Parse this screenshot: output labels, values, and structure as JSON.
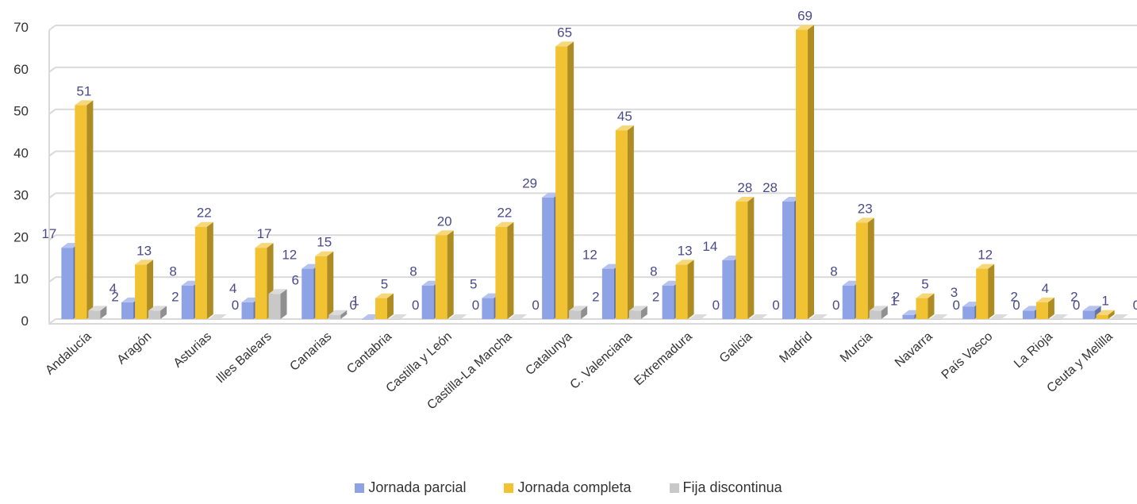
{
  "chart_data": {
    "type": "bar",
    "title": "",
    "xlabel": "",
    "ylabel": "",
    "ylim": [
      0,
      70
    ],
    "yticks": [
      0,
      10,
      20,
      30,
      40,
      50,
      60,
      70
    ],
    "grid": true,
    "legend_position": "bottom",
    "categories": [
      "Andalucía",
      "Aragón",
      "Asturias",
      "Illes Balears",
      "Canarias",
      "Cantabria",
      "Castilla y León",
      "Castilla-La Mancha",
      "Catalunya",
      "C. Valenciana",
      "Extremadura",
      "Galicia",
      "Madrid",
      "Murcia",
      "Navarra",
      "País Vasco",
      "La Rioja",
      "Ceuta  y Melilla"
    ],
    "series": [
      {
        "name": "Jornada parcial",
        "color": "#8EA3E6",
        "values": [
          17,
          4,
          8,
          4,
          12,
          0,
          8,
          5,
          29,
          12,
          8,
          14,
          28,
          8,
          1,
          3,
          2,
          2
        ]
      },
      {
        "name": "Jornada completa",
        "color": "#F1C232",
        "values": [
          51,
          13,
          22,
          17,
          15,
          5,
          20,
          22,
          65,
          45,
          13,
          28,
          69,
          23,
          5,
          12,
          4,
          1
        ]
      },
      {
        "name": "Fija discontinua",
        "color": "#C8C8C8",
        "values": [
          2,
          2,
          0,
          6,
          1,
          0,
          0,
          0,
          2,
          2,
          0,
          0,
          0,
          2,
          0,
          0,
          0,
          0
        ]
      }
    ]
  }
}
